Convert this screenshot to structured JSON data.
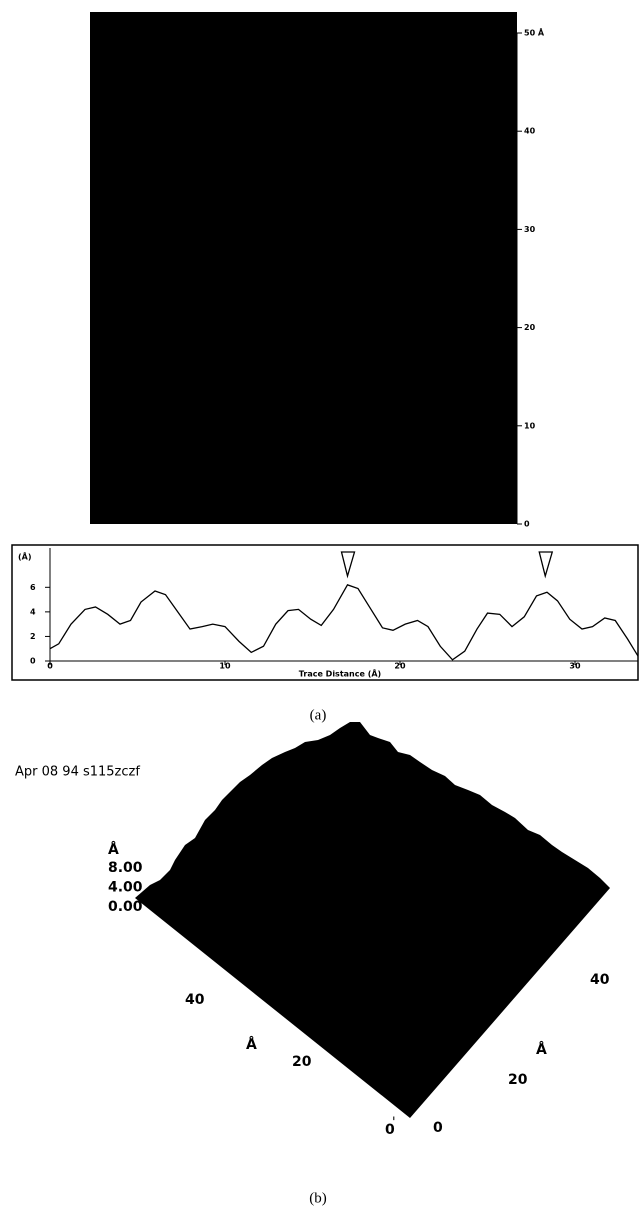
{
  "image_scale": {
    "ticks": [
      {
        "value": 50,
        "label": "50 Å"
      },
      40,
      30,
      20,
      10,
      0
    ],
    "lim": [
      0,
      50
    ]
  },
  "chart_data": {
    "type": "line",
    "y_label": "(Å)",
    "x_label": "Trace Distance (Å)",
    "x": [
      0,
      0.5,
      1.2,
      2,
      2.6,
      3.3,
      4,
      4.6,
      5.2,
      6,
      6.6,
      7.3,
      8,
      8.7,
      9.3,
      10,
      10.8,
      11.5,
      12.2,
      12.9,
      13.6,
      14.2,
      14.9,
      15.5,
      16.2,
      17,
      17.6,
      18.3,
      19,
      19.6,
      20.3,
      21,
      21.6,
      22.3,
      23,
      23.7,
      24.4,
      25,
      25.7,
      26.4,
      27.1,
      27.8,
      28.4,
      29,
      29.7,
      30.4,
      31,
      31.7,
      32.3,
      33,
      33.6
    ],
    "y": [
      1,
      1.4,
      3,
      4.2,
      4.4,
      3.8,
      3,
      3.3,
      4.8,
      5.7,
      5.4,
      4,
      2.6,
      2.8,
      3,
      2.8,
      1.6,
      0.7,
      1.2,
      3,
      4.1,
      4.2,
      3.4,
      2.9,
      4.2,
      6.2,
      5.9,
      4.3,
      2.7,
      2.5,
      3,
      3.3,
      2.8,
      1.2,
      0.1,
      0.8,
      2.6,
      3.9,
      3.8,
      2.8,
      3.6,
      5.3,
      5.6,
      4.9,
      3.4,
      2.6,
      2.8,
      3.5,
      3.3,
      1.8,
      0.4
    ],
    "xlim": [
      0,
      33.6
    ],
    "ylim": [
      0,
      9.2
    ],
    "xticks": [
      0,
      10,
      20,
      30
    ],
    "yticks": [
      0,
      2,
      4,
      6
    ],
    "cursors": [
      17,
      28.3
    ],
    "color": "#000000"
  },
  "caption_a": "(a)",
  "panel_b": {
    "header": "Apr 08 94 s115zczf",
    "z_unit": "Å",
    "z_ticks": [
      {
        "value": 8,
        "label": "8.00"
      },
      {
        "value": 4,
        "label": "4.00"
      },
      {
        "value": 0,
        "label": "0.00"
      }
    ],
    "left_axis": {
      "unit": "Å",
      "ticks": [
        40,
        20,
        0
      ]
    },
    "right_axis": {
      "unit": "Å",
      "ticks": [
        40,
        20,
        0
      ]
    },
    "caption": "(b)"
  }
}
